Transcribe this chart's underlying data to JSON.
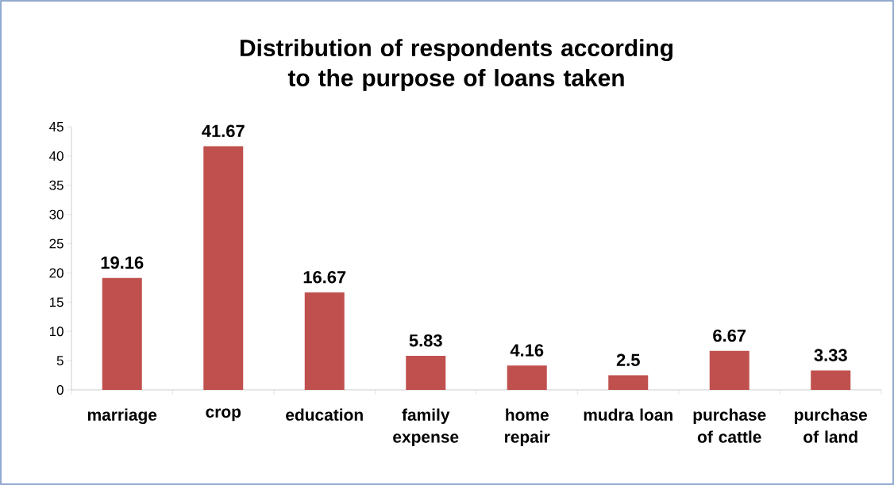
{
  "chart_data": {
    "type": "bar",
    "title": "Distribution of respondents according to the purpose of loans taken",
    "categories": [
      "marriage",
      "crop",
      "education",
      "family expense",
      "home repair",
      "mudra loan",
      "purchase of cattle",
      "purchase of land"
    ],
    "values": [
      19.16,
      41.67,
      16.67,
      5.83,
      4.16,
      2.5,
      6.67,
      3.33
    ],
    "value_labels": [
      "19.16",
      "41.67",
      "16.67",
      "5.83",
      "4.16",
      "2.5",
      "6.67",
      "3.33"
    ],
    "color": "#c0504d",
    "ylim": [
      0,
      45
    ],
    "yticks": [
      0,
      5,
      10,
      15,
      20,
      25,
      30,
      35,
      40,
      45
    ],
    "grid": false
  }
}
